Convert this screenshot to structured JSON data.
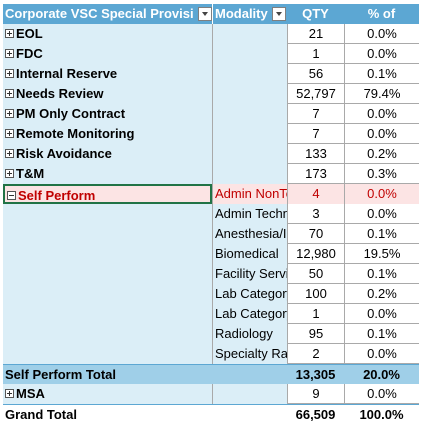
{
  "header": {
    "col_name": "Corporate VSC Special Provisi",
    "col_modality": "Modality",
    "col_qty": "QTY",
    "col_pct": "% of"
  },
  "rows_top": [
    {
      "label": "EOL",
      "qty": "21",
      "pct": "0.0%"
    },
    {
      "label": "FDC",
      "qty": "1",
      "pct": "0.0%"
    },
    {
      "label": "Internal Reserve",
      "qty": "56",
      "pct": "0.1%"
    },
    {
      "label": "Needs Review",
      "qty": "52,797",
      "pct": "79.4%"
    },
    {
      "label": "PM Only Contract",
      "qty": "7",
      "pct": "0.0%"
    },
    {
      "label": "Remote Monitoring",
      "qty": "7",
      "pct": "0.0%"
    },
    {
      "label": "Risk Avoidance",
      "qty": "133",
      "pct": "0.2%"
    },
    {
      "label": "T&M",
      "qty": "173",
      "pct": "0.3%"
    }
  ],
  "self_perform": {
    "label": "Self Perform",
    "children": [
      {
        "modality": "Admin NonTe",
        "qty": "4",
        "pct": "0.0%"
      },
      {
        "modality": "Admin Techn",
        "qty": "3",
        "pct": "0.0%"
      },
      {
        "modality": "Anesthesia/I",
        "qty": "70",
        "pct": "0.1%"
      },
      {
        "modality": "Biomedical",
        "qty": "12,980",
        "pct": "19.5%"
      },
      {
        "modality": "Facility Servi",
        "qty": "50",
        "pct": "0.1%"
      },
      {
        "modality": "Lab Category",
        "qty": "100",
        "pct": "0.2%"
      },
      {
        "modality": "Lab Category",
        "qty": "1",
        "pct": "0.0%"
      },
      {
        "modality": "Radiology",
        "qty": "95",
        "pct": "0.1%"
      },
      {
        "modality": "Specialty Ra",
        "qty": "2",
        "pct": "0.0%"
      }
    ],
    "total_label": "Self Perform Total",
    "total_qty": "13,305",
    "total_pct": "20.0%"
  },
  "msa": {
    "label": "MSA",
    "qty": "9",
    "pct": "0.0%"
  },
  "grand_total": {
    "label": "Grand Total",
    "qty": "66,509",
    "pct": "100.0%"
  }
}
